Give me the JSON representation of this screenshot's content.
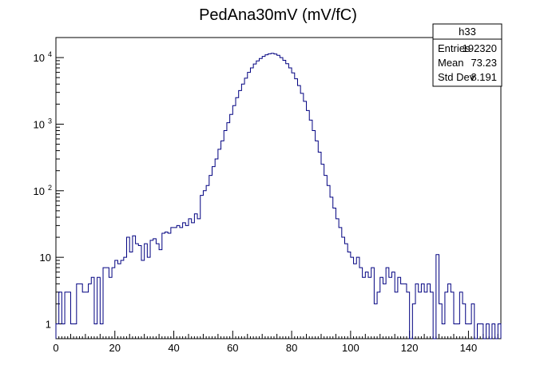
{
  "chart_data": {
    "type": "histogram",
    "title": "PedAna30mV (mV/fC)",
    "xlabel": "",
    "ylabel": "",
    "xlim": [
      0,
      151
    ],
    "ylim": [
      0.6,
      20000
    ],
    "y_scale": "log",
    "line_color": "#000080",
    "bin_width": 1,
    "x_ticks": [
      0,
      20,
      40,
      60,
      80,
      100,
      120,
      140
    ],
    "y_ticks": [
      {
        "value": 1,
        "label": "1"
      },
      {
        "value": 10,
        "label": "10"
      },
      {
        "value": 100,
        "label": "10",
        "exp": "2"
      },
      {
        "value": 1000,
        "label": "10",
        "exp": "3"
      },
      {
        "value": 10000,
        "label": "10",
        "exp": "4"
      }
    ],
    "bins": [
      {
        "x": 0,
        "y": 1
      },
      {
        "x": 1,
        "y": 3
      },
      {
        "x": 2,
        "y": 1
      },
      {
        "x": 3,
        "y": 3
      },
      {
        "x": 4,
        "y": 3
      },
      {
        "x": 5,
        "y": 1
      },
      {
        "x": 6,
        "y": 1
      },
      {
        "x": 7,
        "y": 4
      },
      {
        "x": 8,
        "y": 4
      },
      {
        "x": 9,
        "y": 3
      },
      {
        "x": 10,
        "y": 3
      },
      {
        "x": 11,
        "y": 4
      },
      {
        "x": 12,
        "y": 5
      },
      {
        "x": 13,
        "y": 1
      },
      {
        "x": 14,
        "y": 5
      },
      {
        "x": 15,
        "y": 1
      },
      {
        "x": 16,
        "y": 7
      },
      {
        "x": 17,
        "y": 7
      },
      {
        "x": 18,
        "y": 5
      },
      {
        "x": 19,
        "y": 7
      },
      {
        "x": 20,
        "y": 9
      },
      {
        "x": 21,
        "y": 8
      },
      {
        "x": 22,
        "y": 9
      },
      {
        "x": 23,
        "y": 10
      },
      {
        "x": 24,
        "y": 20
      },
      {
        "x": 25,
        "y": 12
      },
      {
        "x": 26,
        "y": 21
      },
      {
        "x": 27,
        "y": 16
      },
      {
        "x": 28,
        "y": 15
      },
      {
        "x": 29,
        "y": 9
      },
      {
        "x": 30,
        "y": 16
      },
      {
        "x": 31,
        "y": 10
      },
      {
        "x": 32,
        "y": 18
      },
      {
        "x": 33,
        "y": 19
      },
      {
        "x": 34,
        "y": 16
      },
      {
        "x": 35,
        "y": 13
      },
      {
        "x": 36,
        "y": 23
      },
      {
        "x": 37,
        "y": 24
      },
      {
        "x": 38,
        "y": 23
      },
      {
        "x": 39,
        "y": 28
      },
      {
        "x": 40,
        "y": 28
      },
      {
        "x": 41,
        "y": 30
      },
      {
        "x": 42,
        "y": 28
      },
      {
        "x": 43,
        "y": 33
      },
      {
        "x": 44,
        "y": 30
      },
      {
        "x": 45,
        "y": 38
      },
      {
        "x": 46,
        "y": 33
      },
      {
        "x": 47,
        "y": 45
      },
      {
        "x": 48,
        "y": 38
      },
      {
        "x": 49,
        "y": 85
      },
      {
        "x": 50,
        "y": 100
      },
      {
        "x": 51,
        "y": 120
      },
      {
        "x": 52,
        "y": 170
      },
      {
        "x": 53,
        "y": 230
      },
      {
        "x": 54,
        "y": 300
      },
      {
        "x": 55,
        "y": 420
      },
      {
        "x": 56,
        "y": 560
      },
      {
        "x": 57,
        "y": 800
      },
      {
        "x": 58,
        "y": 1050
      },
      {
        "x": 59,
        "y": 1400
      },
      {
        "x": 60,
        "y": 1900
      },
      {
        "x": 61,
        "y": 2500
      },
      {
        "x": 62,
        "y": 3200
      },
      {
        "x": 63,
        "y": 4000
      },
      {
        "x": 64,
        "y": 4900
      },
      {
        "x": 65,
        "y": 6000
      },
      {
        "x": 66,
        "y": 7000
      },
      {
        "x": 67,
        "y": 8000
      },
      {
        "x": 68,
        "y": 8900
      },
      {
        "x": 69,
        "y": 9700
      },
      {
        "x": 70,
        "y": 10400
      },
      {
        "x": 71,
        "y": 11000
      },
      {
        "x": 72,
        "y": 11400
      },
      {
        "x": 73,
        "y": 11600
      },
      {
        "x": 74,
        "y": 11300
      },
      {
        "x": 75,
        "y": 10800
      },
      {
        "x": 76,
        "y": 10000
      },
      {
        "x": 77,
        "y": 9100
      },
      {
        "x": 78,
        "y": 8100
      },
      {
        "x": 79,
        "y": 7000
      },
      {
        "x": 80,
        "y": 5900
      },
      {
        "x": 81,
        "y": 4800
      },
      {
        "x": 82,
        "y": 3800
      },
      {
        "x": 83,
        "y": 2900
      },
      {
        "x": 84,
        "y": 2200
      },
      {
        "x": 85,
        "y": 1600
      },
      {
        "x": 86,
        "y": 1150
      },
      {
        "x": 87,
        "y": 800
      },
      {
        "x": 88,
        "y": 560
      },
      {
        "x": 89,
        "y": 380
      },
      {
        "x": 90,
        "y": 250
      },
      {
        "x": 91,
        "y": 170
      },
      {
        "x": 92,
        "y": 120
      },
      {
        "x": 93,
        "y": 80
      },
      {
        "x": 94,
        "y": 55
      },
      {
        "x": 95,
        "y": 38
      },
      {
        "x": 96,
        "y": 28
      },
      {
        "x": 97,
        "y": 20
      },
      {
        "x": 98,
        "y": 16
      },
      {
        "x": 99,
        "y": 12
      },
      {
        "x": 100,
        "y": 10
      },
      {
        "x": 101,
        "y": 8
      },
      {
        "x": 102,
        "y": 10
      },
      {
        "x": 103,
        "y": 7
      },
      {
        "x": 104,
        "y": 5
      },
      {
        "x": 105,
        "y": 6
      },
      {
        "x": 106,
        "y": 5
      },
      {
        "x": 107,
        "y": 7
      },
      {
        "x": 108,
        "y": 2
      },
      {
        "x": 109,
        "y": 3
      },
      {
        "x": 110,
        "y": 5
      },
      {
        "x": 111,
        "y": 4
      },
      {
        "x": 112,
        "y": 7
      },
      {
        "x": 113,
        "y": 5
      },
      {
        "x": 114,
        "y": 6
      },
      {
        "x": 115,
        "y": 3
      },
      {
        "x": 116,
        "y": 5
      },
      {
        "x": 117,
        "y": 4
      },
      {
        "x": 118,
        "y": 4
      },
      {
        "x": 119,
        "y": 3
      },
      {
        "x": 120,
        "y": 0
      },
      {
        "x": 121,
        "y": 2
      },
      {
        "x": 122,
        "y": 4
      },
      {
        "x": 123,
        "y": 3
      },
      {
        "x": 124,
        "y": 4
      },
      {
        "x": 125,
        "y": 3
      },
      {
        "x": 126,
        "y": 4
      },
      {
        "x": 127,
        "y": 3
      },
      {
        "x": 128,
        "y": 0
      },
      {
        "x": 129,
        "y": 11
      },
      {
        "x": 130,
        "y": 2
      },
      {
        "x": 131,
        "y": 1
      },
      {
        "x": 132,
        "y": 3
      },
      {
        "x": 133,
        "y": 4
      },
      {
        "x": 134,
        "y": 3
      },
      {
        "x": 135,
        "y": 1
      },
      {
        "x": 136,
        "y": 1
      },
      {
        "x": 137,
        "y": 3
      },
      {
        "x": 138,
        "y": 2
      },
      {
        "x": 139,
        "y": 1
      },
      {
        "x": 140,
        "y": 1
      },
      {
        "x": 141,
        "y": 2
      },
      {
        "x": 142,
        "y": 0
      },
      {
        "x": 143,
        "y": 1
      },
      {
        "x": 144,
        "y": 1
      },
      {
        "x": 145,
        "y": 0
      },
      {
        "x": 146,
        "y": 1
      },
      {
        "x": 147,
        "y": 0
      },
      {
        "x": 148,
        "y": 1
      },
      {
        "x": 149,
        "y": 0
      },
      {
        "x": 150,
        "y": 1
      }
    ],
    "stats": {
      "name": "h33",
      "rows": [
        {
          "label": "Entries",
          "value": "192320"
        },
        {
          "label": "Mean",
          "value": "73.23"
        },
        {
          "label": "Std Dev",
          "value": "8.191"
        }
      ]
    }
  }
}
